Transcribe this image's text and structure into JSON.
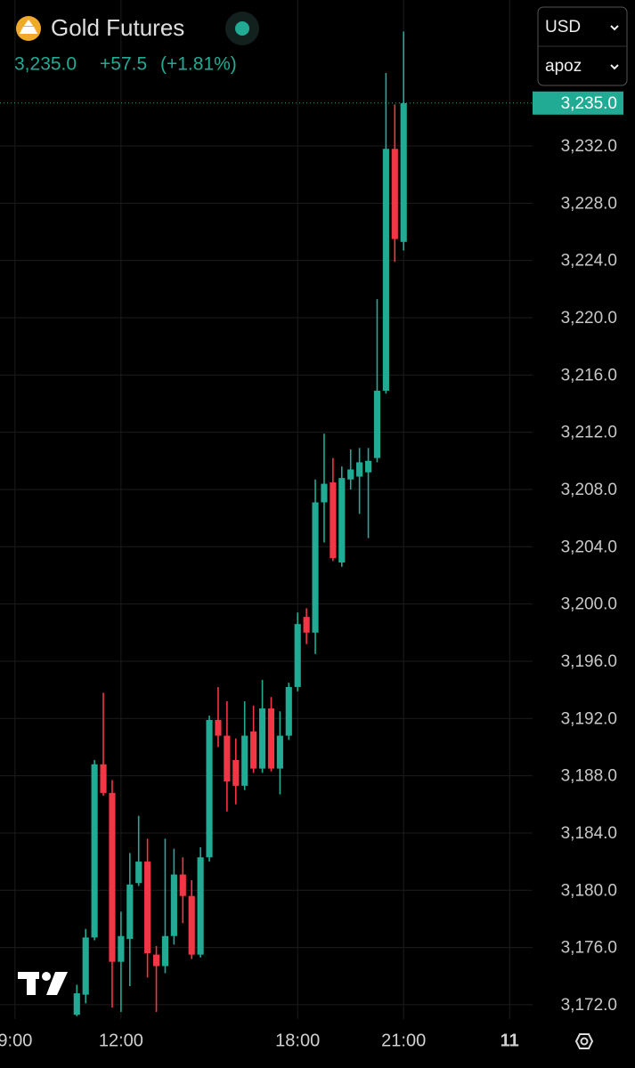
{
  "header": {
    "symbol": "Gold Futures",
    "change": "+57.5",
    "change_pct": "(+1.81%)"
  },
  "controls": {
    "currency": "USD",
    "interval": "apoz"
  },
  "chart_data": {
    "type": "candlestick",
    "up_color": "#22ab94",
    "down_color": "#f23645",
    "x": [
      7,
      8,
      9,
      10,
      11,
      12,
      13,
      14,
      15,
      16,
      17,
      18,
      19,
      20,
      21,
      22,
      23,
      24,
      25,
      26,
      27,
      28,
      29,
      30,
      31,
      32,
      33,
      34,
      35,
      36,
      37,
      38,
      39,
      40,
      41,
      42,
      43,
      44
    ],
    "open": [
      3171.3,
      3172.7,
      3176.7,
      3188.8,
      3186.8,
      3175.0,
      3176.6,
      3180.5,
      3182.0,
      3175.5,
      3174.7,
      3176.8,
      3181.1,
      3179.6,
      3175.5,
      3182.3,
      3191.9,
      3190.8,
      3189.1,
      3187.3,
      3191.1,
      3188.5,
      3192.7,
      3188.5,
      3190.8,
      3194.2,
      3199.1,
      3198.0,
      3207.1,
      3208.5,
      3202.9,
      3208.7,
      3208.9,
      3209.2,
      3210.2,
      3214.9,
      3231.8,
      3225.3
    ],
    "high": [
      3173.4,
      3177.3,
      3189.1,
      3193.8,
      3187.7,
      3178.5,
      3182.6,
      3185.2,
      3183.6,
      3176.1,
      3183.6,
      3182.9,
      3182.3,
      3180.7,
      3183.0,
      3192.2,
      3194.2,
      3193.2,
      3190.6,
      3193.2,
      3192.9,
      3194.7,
      3193.5,
      3192.5,
      3194.5,
      3199.4,
      3199.7,
      3208.7,
      3211.9,
      3210.2,
      3209.6,
      3210.8,
      3210.9,
      3210.9,
      3221.3,
      3237.1,
      3234.9,
      3240.0
    ],
    "low": [
      3171.2,
      3172.1,
      3176.5,
      3186.6,
      3171.8,
      3171.5,
      3173.3,
      3180.3,
      3173.9,
      3171.5,
      3174.2,
      3176.2,
      3177.7,
      3175.2,
      3175.3,
      3182.0,
      3190.0,
      3185.5,
      3186.0,
      3187.0,
      3188.2,
      3188.2,
      3188.3,
      3186.7,
      3190.5,
      3193.9,
      3197.2,
      3196.5,
      3204.3,
      3203.0,
      3202.6,
      3208.0,
      3206.3,
      3204.6,
      3209.9,
      3214.7,
      3223.9,
      3224.7
    ],
    "close": [
      3172.8,
      3176.7,
      3188.8,
      3186.8,
      3175.0,
      3176.8,
      3180.4,
      3182.0,
      3175.6,
      3174.7,
      3176.8,
      3181.1,
      3179.6,
      3175.5,
      3182.3,
      3191.9,
      3190.8,
      3187.6,
      3187.3,
      3190.8,
      3188.5,
      3192.7,
      3188.5,
      3190.8,
      3194.2,
      3198.6,
      3198.0,
      3207.1,
      3208.4,
      3203.2,
      3208.8,
      3209.4,
      3209.9,
      3210.0,
      3214.9,
      3231.8,
      3225.5,
      3235.0
    ],
    "xlim": [
      -1.7,
      58.6
    ],
    "xticks": [
      {
        "value": 0,
        "label": "9:00"
      },
      {
        "value": 12,
        "label": "12:00"
      },
      {
        "value": 32,
        "label": "18:00"
      },
      {
        "value": 44,
        "label": "21:00"
      },
      {
        "value": 56,
        "label": "11"
      }
    ],
    "ylim": [
      3171,
      3242.2
    ],
    "yticks": [
      {
        "value": 3172,
        "label": "3,172.0"
      },
      {
        "value": 3176,
        "label": "3,176.0"
      },
      {
        "value": 3180,
        "label": "3,180.0"
      },
      {
        "value": 3184,
        "label": "3,184.0"
      },
      {
        "value": 3188,
        "label": "3,188.0"
      },
      {
        "value": 3192,
        "label": "3,192.0"
      },
      {
        "value": 3196,
        "label": "3,196.0"
      },
      {
        "value": 3200,
        "label": "3,200.0"
      },
      {
        "value": 3204,
        "label": "3,204.0"
      },
      {
        "value": 3208,
        "label": "3,208.0"
      },
      {
        "value": 3212,
        "label": "3,212.0"
      },
      {
        "value": 3216,
        "label": "3,216.0"
      },
      {
        "value": 3220,
        "label": "3,220.0"
      },
      {
        "value": 3224,
        "label": "3,224.0"
      },
      {
        "value": 3228,
        "label": "3,228.0"
      },
      {
        "value": 3232,
        "label": "3,232.0"
      }
    ],
    "last_price": {
      "value": 3235,
      "label": "3,235.0"
    },
    "grid": true
  }
}
